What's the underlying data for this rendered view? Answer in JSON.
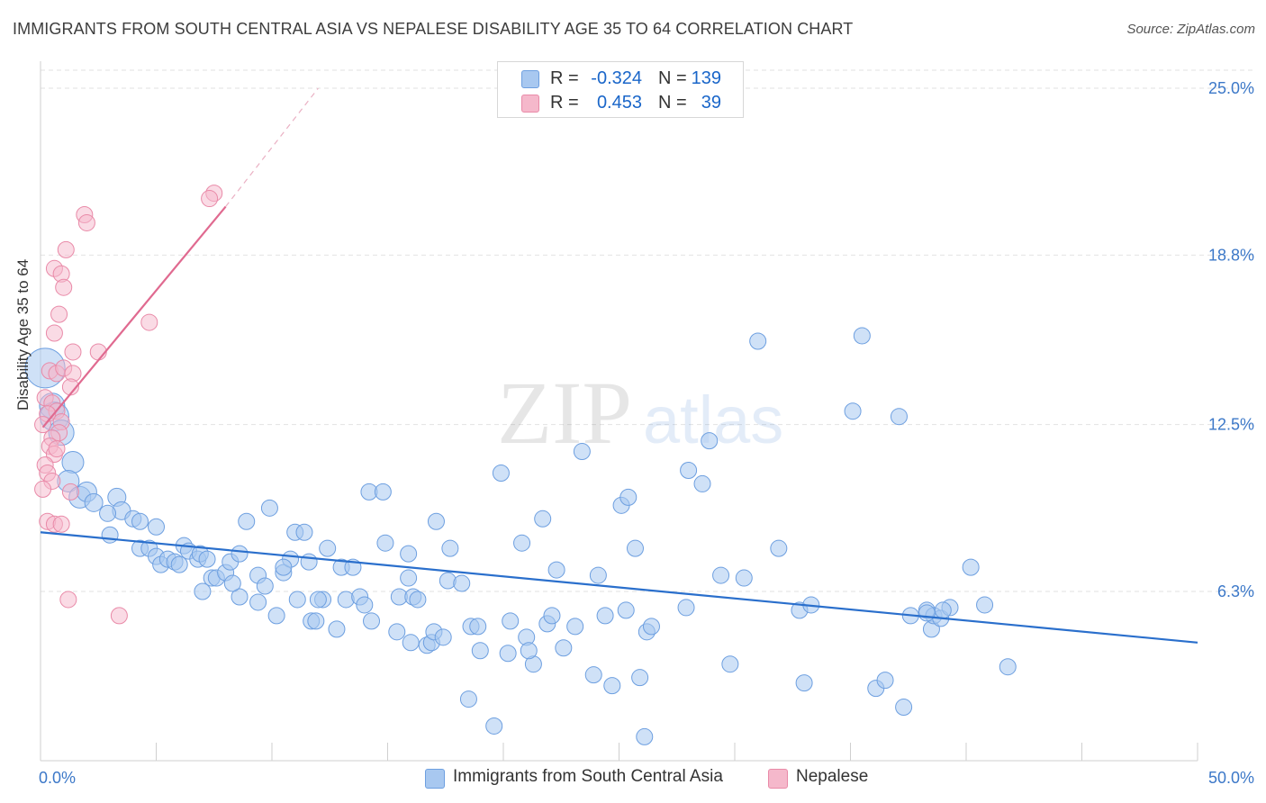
{
  "header": {
    "title": "IMMIGRANTS FROM SOUTH CENTRAL ASIA VS NEPALESE DISABILITY AGE 35 TO 64 CORRELATION CHART",
    "source": "Source: ZipAtlas.com"
  },
  "watermark": {
    "zip": "ZIP",
    "atlas": "atlas"
  },
  "legend": {
    "rows": [
      {
        "r_label": "R =",
        "r_value": "-0.324",
        "n_label": "N =",
        "n_value": "139",
        "color": "#a8c8f0"
      },
      {
        "r_label": "R =",
        "r_value": "0.453",
        "n_label": "N =",
        "n_value": "39",
        "color": "#f5b8cb"
      }
    ]
  },
  "bottom_legend": {
    "series1": "Immigrants from South Central Asia",
    "series2": "Nepalese"
  },
  "colors": {
    "blue_fill": "#a8c8f0",
    "blue_stroke": "#6d9fe0",
    "blue_line": "#2a6fcc",
    "pink_fill": "#f5b8cb",
    "pink_stroke": "#e98aa8",
    "pink_line": "#e06a90",
    "tick_label": "#3c78c8"
  },
  "chart_data": {
    "type": "scatter",
    "title": "IMMIGRANTS FROM SOUTH CENTRAL ASIA VS NEPALESE DISABILITY AGE 35 TO 64 CORRELATION CHART",
    "xlabel": "",
    "ylabel": "Disability Age 35 to 64",
    "xlim": [
      0,
      50
    ],
    "ylim": [
      0,
      25.5
    ],
    "x_tick_labels": [
      "0.0%",
      "50.0%"
    ],
    "y_ticks": [
      6.3,
      12.5,
      18.8,
      25.0
    ],
    "y_tick_labels": [
      "6.3%",
      "12.5%",
      "18.8%",
      "25.0%"
    ],
    "grid": true,
    "legend_position": "top-center",
    "series": [
      {
        "name": "Immigrants from South Central Asia",
        "color": "#a8c8f0",
        "trend": {
          "x": [
            0,
            50
          ],
          "y": [
            8.5,
            4.4
          ]
        },
        "points": [
          [
            0.2,
            14.6,
            22
          ],
          [
            0.5,
            13.2,
            14
          ],
          [
            0.6,
            12.8,
            16
          ],
          [
            0.9,
            12.2,
            14
          ],
          [
            1.4,
            11.1,
            12
          ],
          [
            1.2,
            10.4,
            12
          ],
          [
            1.7,
            9.8,
            12
          ],
          [
            2.0,
            10.0,
            11
          ],
          [
            3.3,
            9.8,
            10
          ],
          [
            2.3,
            9.6,
            10
          ],
          [
            3.5,
            9.3,
            10
          ],
          [
            4.0,
            9.0,
            9
          ],
          [
            4.3,
            8.9,
            9
          ],
          [
            2.9,
            9.2,
            9
          ],
          [
            3.0,
            8.4,
            9
          ],
          [
            5.0,
            8.7,
            9
          ],
          [
            4.3,
            7.9,
            9
          ],
          [
            4.7,
            7.9,
            9
          ],
          [
            5.0,
            7.6,
            9
          ],
          [
            5.2,
            7.3,
            9
          ],
          [
            5.5,
            7.5,
            9
          ],
          [
            5.8,
            7.4,
            9
          ],
          [
            6.0,
            7.3,
            9
          ],
          [
            6.2,
            8.0,
            9
          ],
          [
            6.4,
            7.8,
            9
          ],
          [
            6.8,
            7.5,
            9
          ],
          [
            6.9,
            7.7,
            9
          ],
          [
            7.2,
            7.5,
            9
          ],
          [
            7.4,
            6.8,
            9
          ],
          [
            7.6,
            6.8,
            9
          ],
          [
            8.0,
            7.0,
            9
          ],
          [
            8.2,
            7.4,
            9
          ],
          [
            8.6,
            7.7,
            9
          ],
          [
            8.9,
            8.9,
            9
          ],
          [
            8.6,
            6.1,
            9
          ],
          [
            9.4,
            6.9,
            9
          ],
          [
            9.7,
            6.5,
            9
          ],
          [
            9.4,
            5.9,
            9
          ],
          [
            9.9,
            9.4,
            9
          ],
          [
            10.2,
            5.4,
            9
          ],
          [
            10.5,
            7.0,
            9
          ],
          [
            10.8,
            7.5,
            9
          ],
          [
            11.1,
            6.0,
            9
          ],
          [
            11.0,
            8.5,
            9
          ],
          [
            11.4,
            8.5,
            9
          ],
          [
            11.6,
            7.4,
            9
          ],
          [
            11.7,
            5.2,
            9
          ],
          [
            11.9,
            5.2,
            9
          ],
          [
            12.2,
            6.0,
            9
          ],
          [
            12.4,
            7.9,
            9
          ],
          [
            12.8,
            4.9,
            9
          ],
          [
            13.0,
            7.2,
            9
          ],
          [
            13.2,
            6.0,
            9
          ],
          [
            13.5,
            7.2,
            9
          ],
          [
            13.8,
            6.1,
            9
          ],
          [
            14.0,
            5.8,
            9
          ],
          [
            14.2,
            10.0,
            9
          ],
          [
            14.3,
            5.2,
            9
          ],
          [
            14.8,
            10.0,
            9
          ],
          [
            14.9,
            8.1,
            9
          ],
          [
            15.4,
            4.8,
            9
          ],
          [
            15.5,
            6.1,
            9
          ],
          [
            15.9,
            6.8,
            9
          ],
          [
            15.9,
            7.7,
            9
          ],
          [
            16.1,
            6.1,
            9
          ],
          [
            16.3,
            6.0,
            9
          ],
          [
            16.0,
            4.4,
            9
          ],
          [
            16.7,
            4.3,
            9
          ],
          [
            16.9,
            4.4,
            9
          ],
          [
            17.0,
            4.8,
            9
          ],
          [
            17.1,
            8.9,
            9
          ],
          [
            17.6,
            6.7,
            9
          ],
          [
            17.7,
            7.9,
            9
          ],
          [
            18.2,
            6.6,
            9
          ],
          [
            18.5,
            2.3,
            9
          ],
          [
            18.6,
            5.0,
            9
          ],
          [
            18.9,
            5.0,
            9
          ],
          [
            19.0,
            4.1,
            9
          ],
          [
            19.6,
            1.3,
            9
          ],
          [
            19.9,
            10.7,
            9
          ],
          [
            20.2,
            4.0,
            9
          ],
          [
            20.3,
            5.2,
            9
          ],
          [
            20.8,
            8.1,
            9
          ],
          [
            21.0,
            4.6,
            9
          ],
          [
            21.3,
            3.6,
            9
          ],
          [
            21.1,
            4.1,
            9
          ],
          [
            21.7,
            9.0,
            9
          ],
          [
            21.9,
            5.1,
            9
          ],
          [
            22.1,
            5.4,
            9
          ],
          [
            22.3,
            7.1,
            9
          ],
          [
            22.6,
            4.2,
            9
          ],
          [
            23.1,
            5.0,
            9
          ],
          [
            23.4,
            11.5,
            9
          ],
          [
            23.9,
            3.2,
            9
          ],
          [
            24.1,
            6.9,
            9
          ],
          [
            24.4,
            5.4,
            9
          ],
          [
            24.7,
            2.8,
            9
          ],
          [
            25.1,
            9.5,
            9
          ],
          [
            25.3,
            5.6,
            9
          ],
          [
            25.4,
            9.8,
            9
          ],
          [
            25.7,
            7.9,
            9
          ],
          [
            25.9,
            3.1,
            9
          ],
          [
            26.1,
            0.9,
            9
          ],
          [
            26.2,
            4.8,
            9
          ],
          [
            26.4,
            5.0,
            9
          ],
          [
            27.9,
            5.7,
            9
          ],
          [
            28.0,
            10.8,
            9
          ],
          [
            28.6,
            10.3,
            9
          ],
          [
            28.9,
            11.9,
            9
          ],
          [
            29.4,
            6.9,
            9
          ],
          [
            29.8,
            3.6,
            9
          ],
          [
            30.4,
            6.8,
            9
          ],
          [
            31.0,
            15.6,
            9
          ],
          [
            31.9,
            7.9,
            9
          ],
          [
            32.8,
            5.6,
            9
          ],
          [
            33.0,
            2.9,
            9
          ],
          [
            33.3,
            5.8,
            9
          ],
          [
            35.5,
            15.8,
            9
          ],
          [
            35.1,
            13.0,
            9
          ],
          [
            36.1,
            2.7,
            9
          ],
          [
            36.5,
            3.0,
            9
          ],
          [
            37.1,
            12.8,
            9
          ],
          [
            37.3,
            2.0,
            9
          ],
          [
            37.6,
            5.4,
            9
          ],
          [
            38.3,
            5.6,
            9
          ],
          [
            38.5,
            4.9,
            9
          ],
          [
            38.6,
            5.4,
            9
          ],
          [
            38.9,
            5.3,
            9
          ],
          [
            38.3,
            5.5,
            9
          ],
          [
            39.3,
            5.7,
            9
          ],
          [
            39.0,
            5.6,
            9
          ],
          [
            40.2,
            7.2,
            9
          ],
          [
            40.8,
            5.8,
            9
          ],
          [
            41.8,
            3.5,
            9
          ],
          [
            10.5,
            7.2,
            9
          ],
          [
            12.0,
            6.0,
            9
          ],
          [
            8.3,
            6.6,
            9
          ],
          [
            7.0,
            6.3,
            9
          ],
          [
            17.4,
            4.6,
            9
          ]
        ]
      },
      {
        "name": "Nepalese",
        "color": "#f5b8cb",
        "trend": {
          "x": [
            0.1,
            8.0
          ],
          "y": [
            12.4,
            20.6
          ]
        },
        "trend_extension": {
          "x": [
            8.0,
            12.0
          ],
          "y": [
            20.6,
            25.0
          ]
        },
        "points": [
          [
            7.5,
            21.1,
            9
          ],
          [
            7.3,
            20.9,
            9
          ],
          [
            1.9,
            20.3,
            9
          ],
          [
            2.0,
            20.0,
            9
          ],
          [
            1.1,
            19.0,
            9
          ],
          [
            0.6,
            18.3,
            9
          ],
          [
            0.9,
            18.1,
            9
          ],
          [
            1.0,
            17.6,
            9
          ],
          [
            0.8,
            16.6,
            9
          ],
          [
            4.7,
            16.3,
            9
          ],
          [
            0.6,
            15.9,
            9
          ],
          [
            1.4,
            15.2,
            9
          ],
          [
            2.5,
            15.2,
            9
          ],
          [
            0.4,
            14.5,
            9
          ],
          [
            0.7,
            14.4,
            9
          ],
          [
            1.0,
            14.6,
            9
          ],
          [
            1.4,
            14.4,
            9
          ],
          [
            1.3,
            13.9,
            9
          ],
          [
            0.2,
            13.5,
            9
          ],
          [
            0.5,
            13.3,
            9
          ],
          [
            0.7,
            13.0,
            9
          ],
          [
            0.9,
            12.6,
            9
          ],
          [
            0.3,
            12.9,
            9
          ],
          [
            0.8,
            12.2,
            9
          ],
          [
            0.5,
            12.0,
            9
          ],
          [
            0.4,
            11.7,
            9
          ],
          [
            0.6,
            11.4,
            9
          ],
          [
            0.7,
            11.6,
            9
          ],
          [
            0.2,
            11.0,
            9
          ],
          [
            0.3,
            10.7,
            9
          ],
          [
            0.5,
            10.4,
            9
          ],
          [
            0.1,
            10.1,
            9
          ],
          [
            1.3,
            10.0,
            9
          ],
          [
            0.3,
            8.9,
            9
          ],
          [
            0.6,
            8.8,
            9
          ],
          [
            0.9,
            8.8,
            9
          ],
          [
            1.2,
            6.0,
            9
          ],
          [
            3.4,
            5.4,
            9
          ],
          [
            0.1,
            12.5,
            9
          ]
        ]
      }
    ]
  }
}
